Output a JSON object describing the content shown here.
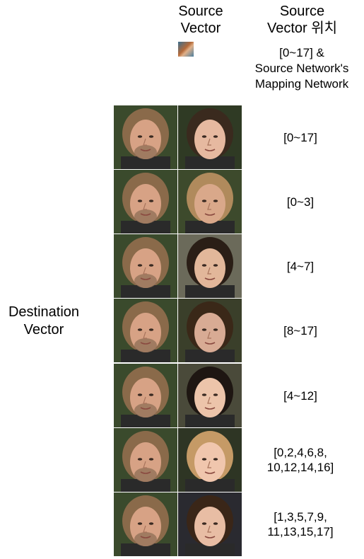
{
  "header": {
    "source_vector_line1": "Source",
    "source_vector_line2": "Vector",
    "position_line1": "Source",
    "position_line2": "Vector 위치"
  },
  "top_note": {
    "line1": "[0~17] &",
    "line2": "Source Network's",
    "line3": "Mapping Network"
  },
  "side_label": {
    "line1": "Destination",
    "line2": "Vector"
  },
  "rows": [
    {
      "line1": "[0~17]",
      "line2": "",
      "bg": "#2f3a24",
      "hair": "#3a2a1e",
      "skin": "#e6b9a0"
    },
    {
      "line1": "[0~3]",
      "line2": "",
      "bg": "#3d4a2c",
      "hair": "#b08a5c",
      "skin": "#d9a88a"
    },
    {
      "line1": "[4~7]",
      "line2": "",
      "bg": "#6b6a5a",
      "hair": "#2a1e16",
      "skin": "#e2b79a"
    },
    {
      "line1": "[8~17]",
      "line2": "",
      "bg": "#3a3f2a",
      "hair": "#3a2818",
      "skin": "#d8ab94"
    },
    {
      "line1": "[4~12]",
      "line2": "",
      "bg": "#4a4a3a",
      "hair": "#1e1612",
      "skin": "#ecc4aa"
    },
    {
      "line1": "[0,2,4,6,8,",
      "line2": "10,12,14,16]",
      "bg": "#2e3524",
      "hair": "#c59a66",
      "skin": "#f0c6ad"
    },
    {
      "line1": "[1,3,5,7,9,",
      "line2": "11,13,15,17]",
      "bg": "#2a2a30",
      "hair": "#3a2618",
      "skin": "#e8bda4"
    }
  ],
  "dest_face": {
    "bg": "#3a4a2c",
    "hair": "#8a6a4a",
    "skin": "#d7a285",
    "beard": "#8e6d55"
  }
}
